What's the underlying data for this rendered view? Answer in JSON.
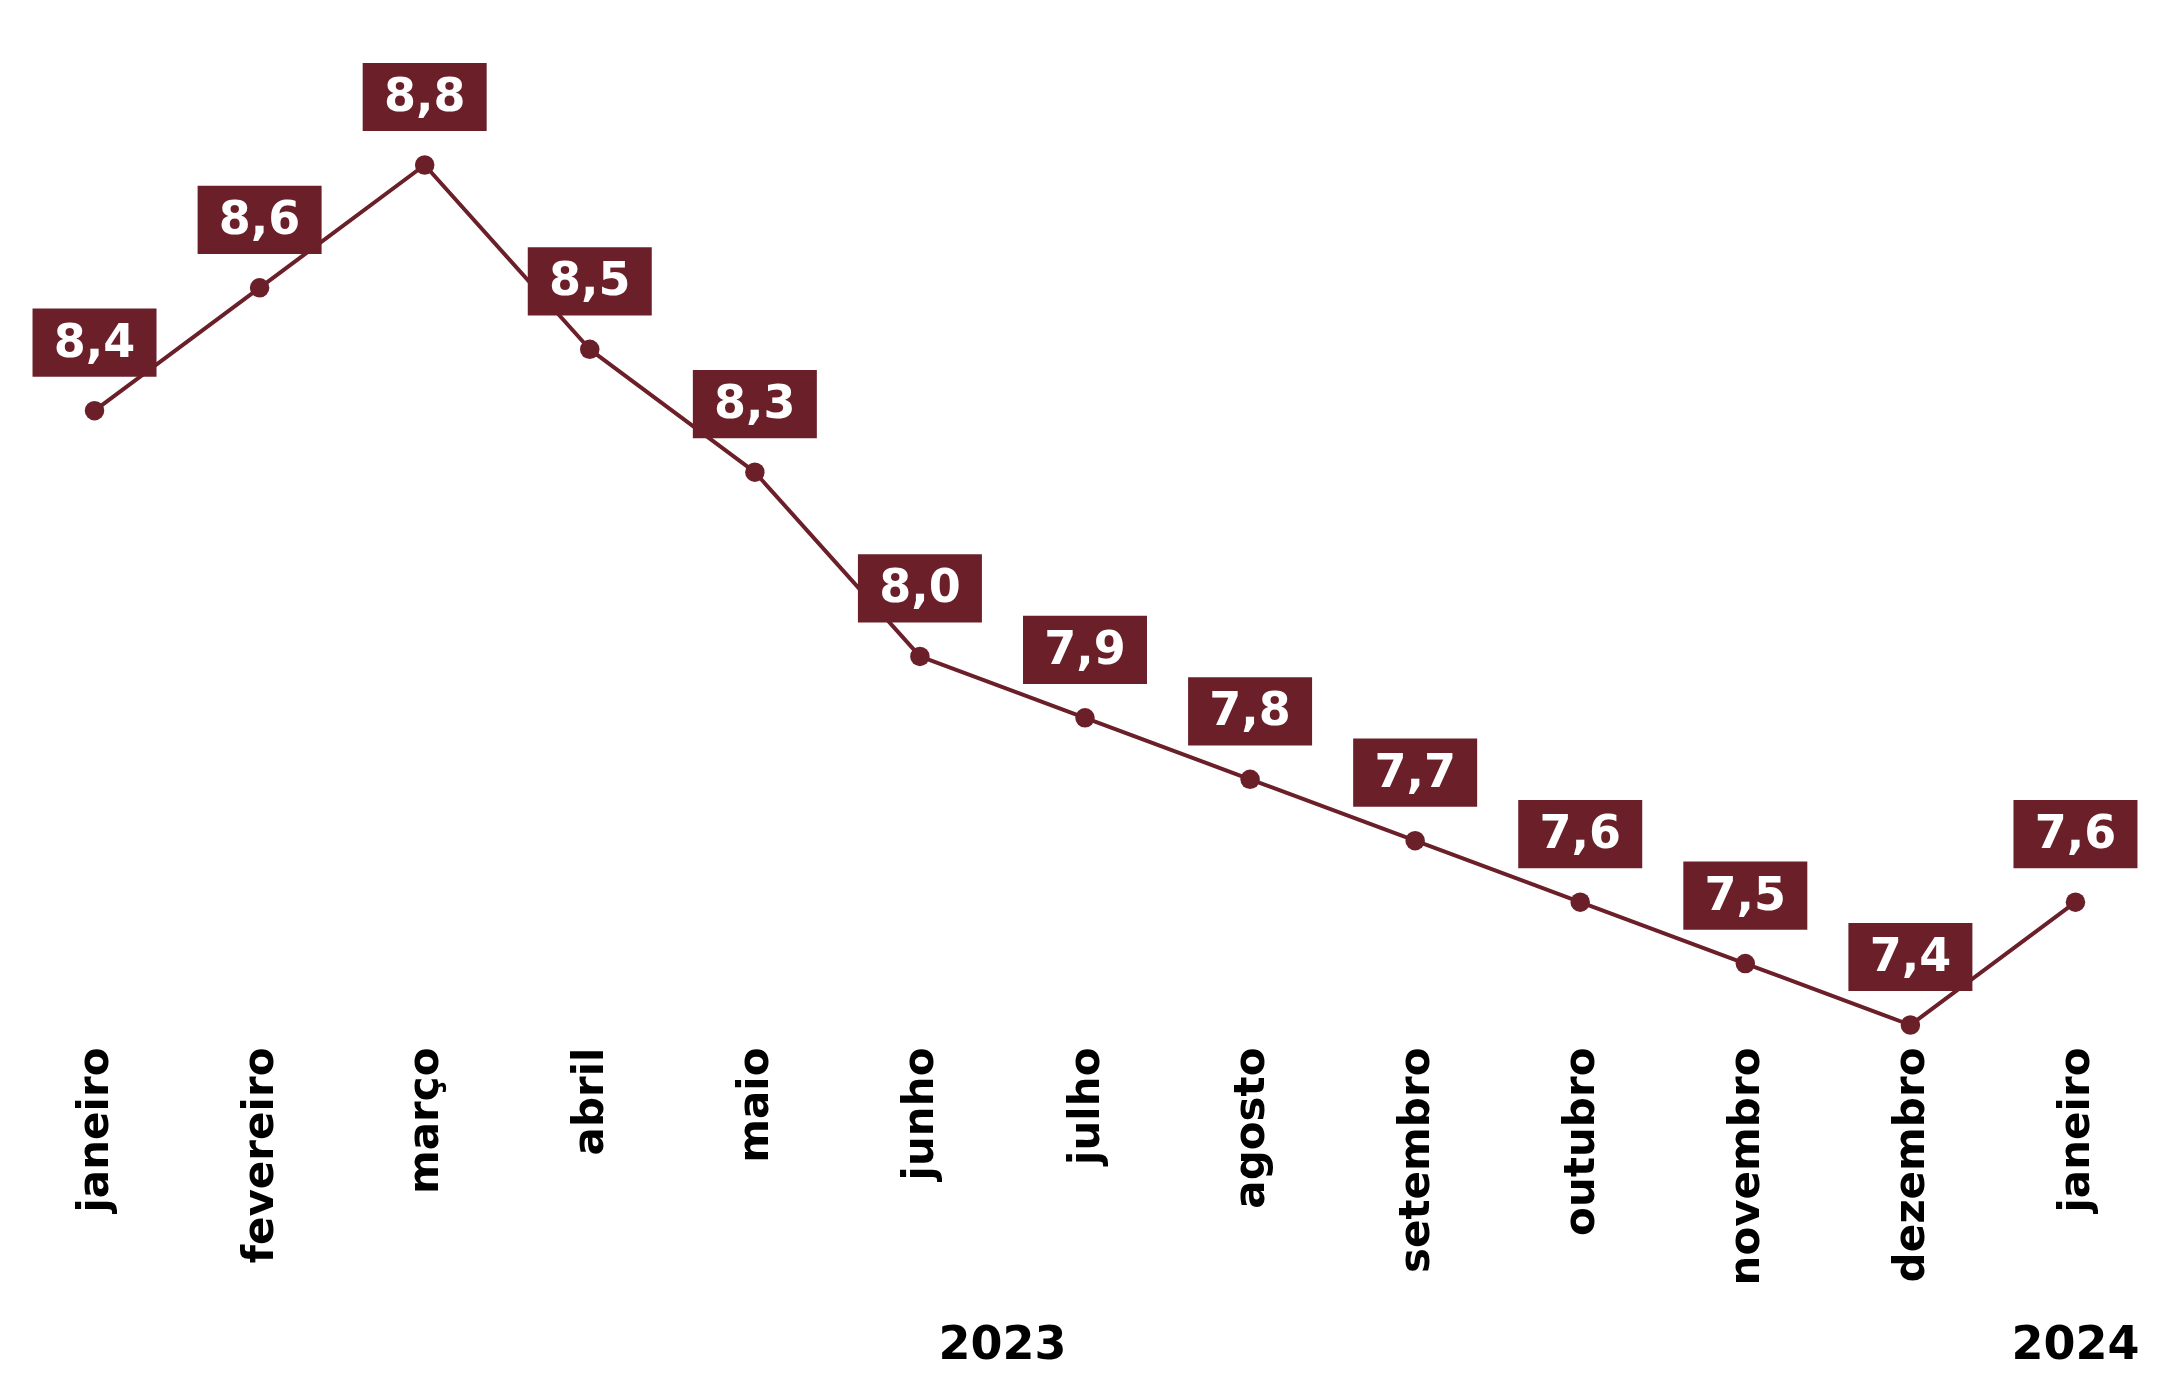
{
  "chart_data": {
    "type": "line",
    "categories": [
      "janeiro",
      "fevereiro",
      "março",
      "abril",
      "maio",
      "junho",
      "julho",
      "agosto",
      "setembro",
      "outubro",
      "novembro",
      "dezembro",
      "janeiro"
    ],
    "series": [
      {
        "color": "#6b2029",
        "values": [
          8.4,
          8.6,
          8.8,
          8.5,
          8.3,
          8.0,
          7.9,
          7.8,
          7.7,
          7.6,
          7.5,
          7.4,
          7.6
        ],
        "value_labels": [
          "8,4",
          "8,6",
          "8,8",
          "8,5",
          "8,3",
          "8,0",
          "7,9",
          "7,8",
          "7,7",
          "7,6",
          "7,5",
          "7,4",
          "7,6"
        ]
      }
    ],
    "marker": "circle",
    "line_style": "solid",
    "grid": false,
    "annotations": [
      "2023",
      "2024"
    ]
  }
}
